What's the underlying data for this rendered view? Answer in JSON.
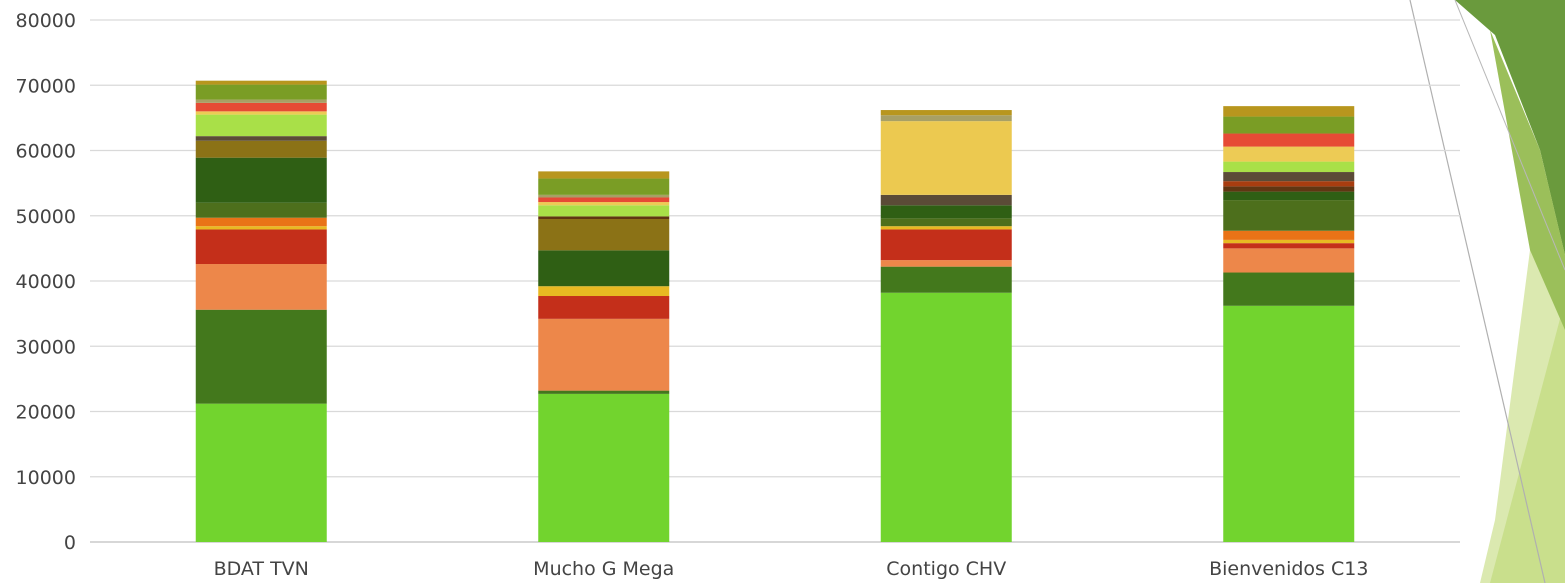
{
  "chart_data": {
    "type": "bar",
    "stacked": true,
    "title": "",
    "xlabel": "",
    "ylabel": "",
    "ylim": [
      0,
      80000
    ],
    "yticks": [
      0,
      10000,
      20000,
      30000,
      40000,
      50000,
      60000,
      70000,
      80000
    ],
    "grid": true,
    "legend": "none",
    "categories": [
      "BDAT TVN",
      "Mucho G Mega",
      "Contigo CHV",
      "Bienvenidos C13"
    ],
    "series": [
      {
        "color": "#72d42e",
        "values": [
          21200,
          22700,
          38200,
          36200
        ]
      },
      {
        "color": "#43781c",
        "values": [
          14400,
          500,
          4000,
          5100
        ]
      },
      {
        "color": "#ed874a",
        "values": [
          7000,
          11000,
          1000,
          3700
        ]
      },
      {
        "color": "#c42f1a",
        "values": [
          5300,
          3500,
          4700,
          800
        ]
      },
      {
        "color": "#e8b922",
        "values": [
          500,
          1500,
          500,
          500
        ]
      },
      {
        "color": "#e97317",
        "values": [
          1300,
          0,
          0,
          1400
        ]
      },
      {
        "color": "#4d6f1c",
        "values": [
          2300,
          0,
          1200,
          4700
        ]
      },
      {
        "color": "#2f5f14",
        "values": [
          6900,
          5500,
          2000,
          1300
        ]
      },
      {
        "color": "#8b7216",
        "values": [
          2600,
          4800,
          0,
          0
        ]
      },
      {
        "color": "#603612",
        "values": [
          0,
          400,
          0,
          800
        ]
      },
      {
        "color": "#a83d10",
        "values": [
          0,
          0,
          0,
          800
        ]
      },
      {
        "color": "#5b4b37",
        "values": [
          700,
          0,
          1600,
          1400
        ]
      },
      {
        "color": "#ecc950",
        "values": [
          0,
          0,
          11300,
          0
        ]
      },
      {
        "color": "#a9e048",
        "values": [
          3300,
          1700,
          0,
          1600
        ]
      },
      {
        "color": "#edcb55",
        "values": [
          500,
          500,
          0,
          2300
        ]
      },
      {
        "color": "#e64b35",
        "values": [
          1300,
          700,
          0,
          2000
        ]
      },
      {
        "color": "#a8a065",
        "values": [
          500,
          400,
          900,
          0
        ]
      },
      {
        "color": "#7a9d25",
        "values": [
          2300,
          2500,
          0,
          2600
        ]
      },
      {
        "color": "#b8961e",
        "values": [
          600,
          1100,
          800,
          1600
        ]
      }
    ]
  }
}
